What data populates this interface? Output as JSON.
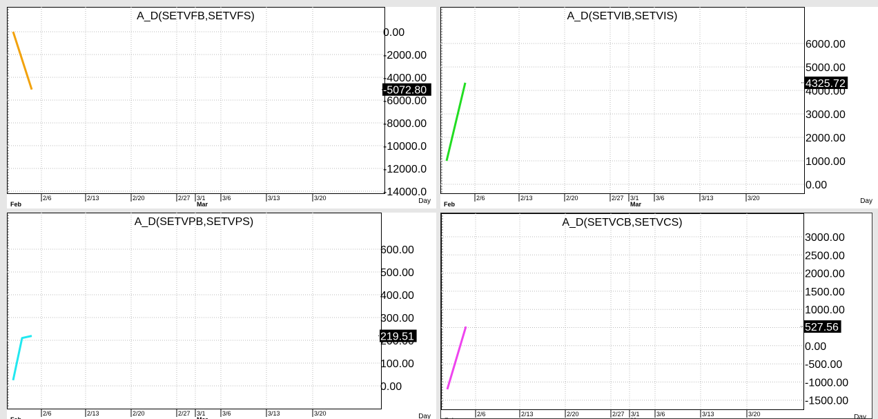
{
  "period_label": "Day",
  "chart_data": [
    {
      "type": "line",
      "title": "A_D(SETVFB,SETVFS)",
      "color": "#f2a20d",
      "x_categories": [
        "2/6",
        "2/13",
        "2/20",
        "2/27",
        "3/1",
        "3/6",
        "3/13",
        "3/20"
      ],
      "x_months": [
        "Feb",
        "Mar"
      ],
      "yticks": [
        "0.00",
        "-2000.00",
        "-4000.00",
        "-6000.00",
        "-8000.00",
        "-10000.0",
        "-12000.0",
        "-14000.0"
      ],
      "ylim": [
        -15500,
        1500
      ],
      "series": [
        {
          "x": [
            "2/1",
            "2/2"
          ],
          "values": [
            0,
            -5072.8
          ]
        }
      ],
      "last_value": "-5072.80"
    },
    {
      "type": "line",
      "title": "A_D(SETVIB,SETVIS)",
      "color": "#22dd22",
      "x_categories": [
        "2/6",
        "2/13",
        "2/20",
        "2/27",
        "3/1",
        "3/6",
        "3/13",
        "3/20"
      ],
      "x_months": [
        "Feb",
        "Mar"
      ],
      "yticks": [
        "6000.00",
        "5000.00",
        "4000.00",
        "3000.00",
        "2000.00",
        "1000.00",
        "0.00"
      ],
      "ylim": [
        -750,
        7200
      ],
      "series": [
        {
          "x": [
            "2/1",
            "2/2"
          ],
          "values": [
            1000,
            4325.72
          ]
        }
      ],
      "last_value": "4325.72"
    },
    {
      "type": "line",
      "title": "A_D(SETVPB,SETVPS)",
      "color": "#22e8f0",
      "x_categories": [
        "2/6",
        "2/13",
        "2/20",
        "2/27",
        "3/1",
        "3/6",
        "3/13",
        "3/20"
      ],
      "x_months": [
        "Feb",
        "Mar"
      ],
      "yticks": [
        "600.00",
        "500.00",
        "400.00",
        "300.00",
        "200.00",
        "100.00",
        "0.00"
      ],
      "ylim": [
        -80,
        720
      ],
      "series": [
        {
          "x": [
            "2/1",
            "2/2",
            "2/3"
          ],
          "values": [
            25,
            210,
            219.51
          ]
        }
      ],
      "last_value": "219.51"
    },
    {
      "type": "line",
      "title": "A_D(SETVCB,SETVCS)",
      "color": "#ee44ee",
      "x_categories": [
        "2/6",
        "2/13",
        "2/20",
        "2/27",
        "3/1",
        "3/6",
        "3/13",
        "3/20"
      ],
      "x_months": [
        "Feb",
        "Mar"
      ],
      "yticks": [
        "3000.00",
        "2500.00",
        "2000.00",
        "1500.00",
        "1000.00",
        "500.00",
        "0.00",
        "-500.00",
        "-1000.00",
        "-1500.00"
      ],
      "ylim": [
        -1950,
        3450
      ],
      "series": [
        {
          "x": [
            "2/1",
            "2/2"
          ],
          "values": [
            -1200,
            527.56
          ]
        }
      ],
      "last_value": "527.56"
    }
  ]
}
